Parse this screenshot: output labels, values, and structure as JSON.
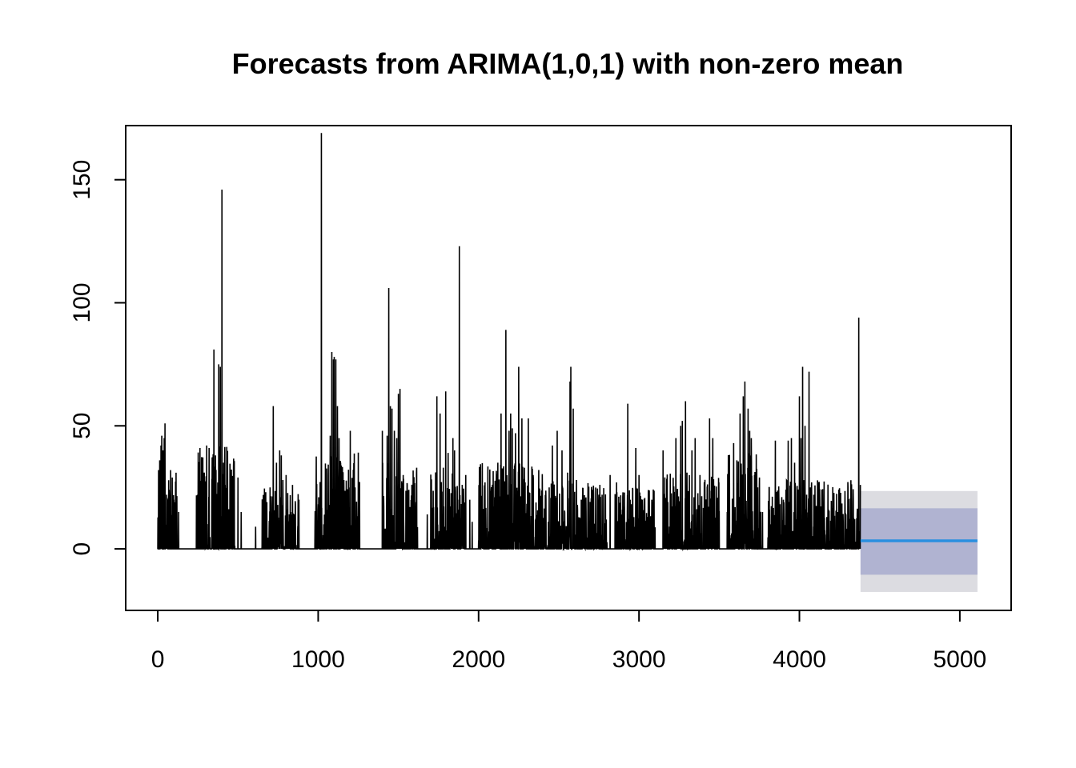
{
  "chart_data": {
    "type": "line",
    "title": "Forecasts from ARIMA(1,0,1) with non-zero mean",
    "xlabel": "",
    "ylabel": "",
    "xlim": [
      -200,
      5320
    ],
    "ylim": [
      -25,
      172
    ],
    "x_ticks": [
      0,
      1000,
      2000,
      3000,
      4000,
      5000
    ],
    "y_ticks": [
      0,
      50,
      100,
      150
    ],
    "grid": false,
    "legend": "none",
    "series_color": "#000000",
    "observed_n": 4380,
    "observed": {
      "baseline": 0,
      "bursts": [
        [
          0,
          120,
          32
        ],
        [
          240,
          480,
          45
        ],
        [
          650,
          880,
          25
        ],
        [
          980,
          1260,
          40
        ],
        [
          1400,
          1620,
          35
        ],
        [
          1700,
          1920,
          32
        ],
        [
          2000,
          2400,
          35
        ],
        [
          2400,
          2800,
          28
        ],
        [
          2850,
          3100,
          25
        ],
        [
          3150,
          3500,
          32
        ],
        [
          3550,
          3760,
          40
        ],
        [
          3800,
          4380,
          28
        ]
      ],
      "spikes": [
        [
          5,
          32
        ],
        [
          12,
          36
        ],
        [
          20,
          42
        ],
        [
          25,
          46
        ],
        [
          33,
          40
        ],
        [
          40,
          45
        ],
        [
          45,
          51
        ],
        [
          55,
          22
        ],
        [
          70,
          24
        ],
        [
          80,
          32
        ],
        [
          90,
          29
        ],
        [
          100,
          20
        ],
        [
          130,
          15
        ],
        [
          250,
          18
        ],
        [
          290,
          31
        ],
        [
          305,
          42
        ],
        [
          320,
          41
        ],
        [
          340,
          37
        ],
        [
          350,
          81
        ],
        [
          360,
          38
        ],
        [
          380,
          75
        ],
        [
          390,
          74
        ],
        [
          400,
          146
        ],
        [
          410,
          35
        ],
        [
          420,
          26
        ],
        [
          440,
          8
        ],
        [
          470,
          12
        ],
        [
          500,
          29
        ],
        [
          520,
          15
        ],
        [
          610,
          9
        ],
        [
          680,
          19
        ],
        [
          700,
          25
        ],
        [
          720,
          58
        ],
        [
          740,
          35
        ],
        [
          760,
          40
        ],
        [
          770,
          38
        ],
        [
          780,
          28
        ],
        [
          800,
          30
        ],
        [
          820,
          14
        ],
        [
          840,
          26
        ],
        [
          880,
          20
        ],
        [
          1020,
          169
        ],
        [
          1035,
          10
        ],
        [
          1075,
          46
        ],
        [
          1085,
          80
        ],
        [
          1095,
          77
        ],
        [
          1100,
          78
        ],
        [
          1110,
          77
        ],
        [
          1120,
          58
        ],
        [
          1130,
          45
        ],
        [
          1140,
          35
        ],
        [
          1160,
          28
        ],
        [
          1170,
          15
        ],
        [
          1200,
          48
        ],
        [
          1230,
          25
        ],
        [
          1400,
          48
        ],
        [
          1430,
          46
        ],
        [
          1440,
          106
        ],
        [
          1450,
          58
        ],
        [
          1460,
          57
        ],
        [
          1475,
          48
        ],
        [
          1490,
          45
        ],
        [
          1500,
          63
        ],
        [
          1510,
          65
        ],
        [
          1530,
          30
        ],
        [
          1555,
          26
        ],
        [
          1570,
          15
        ],
        [
          1610,
          19
        ],
        [
          1680,
          14
        ],
        [
          1740,
          62
        ],
        [
          1760,
          55
        ],
        [
          1780,
          33
        ],
        [
          1795,
          64
        ],
        [
          1810,
          39
        ],
        [
          1840,
          45
        ],
        [
          1850,
          40
        ],
        [
          1880,
          123
        ],
        [
          1920,
          30
        ],
        [
          1945,
          20
        ],
        [
          1960,
          11
        ],
        [
          2040,
          27
        ],
        [
          2100,
          21
        ],
        [
          2120,
          35
        ],
        [
          2140,
          55
        ],
        [
          2150,
          30
        ],
        [
          2170,
          89
        ],
        [
          2190,
          48
        ],
        [
          2200,
          55
        ],
        [
          2210,
          49
        ],
        [
          2230,
          47
        ],
        [
          2250,
          74
        ],
        [
          2270,
          53
        ],
        [
          2290,
          27
        ],
        [
          2310,
          53
        ],
        [
          2340,
          30
        ],
        [
          2380,
          18
        ],
        [
          2420,
          20
        ],
        [
          2440,
          25
        ],
        [
          2460,
          42
        ],
        [
          2490,
          48
        ],
        [
          2520,
          40
        ],
        [
          2555,
          31
        ],
        [
          2570,
          68
        ],
        [
          2575,
          74
        ],
        [
          2590,
          57
        ],
        [
          2610,
          28
        ],
        [
          2640,
          20
        ],
        [
          2670,
          15
        ],
        [
          2710,
          24
        ],
        [
          2750,
          22
        ],
        [
          2770,
          22
        ],
        [
          2820,
          30
        ],
        [
          2860,
          27
        ],
        [
          2900,
          23
        ],
        [
          2930,
          59
        ],
        [
          2945,
          20
        ],
        [
          2980,
          41
        ],
        [
          3000,
          30
        ],
        [
          3020,
          20
        ],
        [
          3050,
          13
        ],
        [
          3080,
          20
        ],
        [
          3150,
          40
        ],
        [
          3180,
          19
        ],
        [
          3200,
          17
        ],
        [
          3230,
          45
        ],
        [
          3260,
          50
        ],
        [
          3270,
          52
        ],
        [
          3290,
          60
        ],
        [
          3310,
          18
        ],
        [
          3330,
          40
        ],
        [
          3350,
          45
        ],
        [
          3380,
          30
        ],
        [
          3410,
          20
        ],
        [
          3440,
          53
        ],
        [
          3460,
          45
        ],
        [
          3490,
          17
        ],
        [
          3550,
          15
        ],
        [
          3590,
          43
        ],
        [
          3610,
          36
        ],
        [
          3630,
          55
        ],
        [
          3650,
          62
        ],
        [
          3660,
          68
        ],
        [
          3680,
          57
        ],
        [
          3690,
          48
        ],
        [
          3700,
          45
        ],
        [
          3720,
          30
        ],
        [
          3740,
          25
        ],
        [
          3770,
          15
        ],
        [
          3820,
          10
        ],
        [
          3850,
          44
        ],
        [
          3900,
          20
        ],
        [
          3930,
          44
        ],
        [
          3950,
          45
        ],
        [
          3970,
          35
        ],
        [
          3985,
          25
        ],
        [
          4000,
          62
        ],
        [
          4010,
          45
        ],
        [
          4020,
          74
        ],
        [
          4035,
          50
        ],
        [
          4045,
          22
        ],
        [
          4060,
          72
        ],
        [
          4075,
          24
        ],
        [
          4090,
          22
        ],
        [
          4110,
          15
        ],
        [
          4170,
          8
        ],
        [
          4200,
          12
        ],
        [
          4240,
          15
        ],
        [
          4290,
          14
        ],
        [
          4320,
          13
        ],
        [
          4345,
          12
        ],
        [
          4360,
          14
        ],
        [
          4370,
          94
        ],
        [
          4380,
          26
        ]
      ]
    },
    "forecast": {
      "start": 4381,
      "end": 5110,
      "mean": 3.3,
      "lower_80": -10.5,
      "upper_80": 16.5,
      "lower_95": -17.5,
      "upper_95": 23.5,
      "mean_color": "#2a8fe0",
      "band_80_color": "#b0b3d1",
      "band_95_color": "#dcdce1"
    }
  }
}
